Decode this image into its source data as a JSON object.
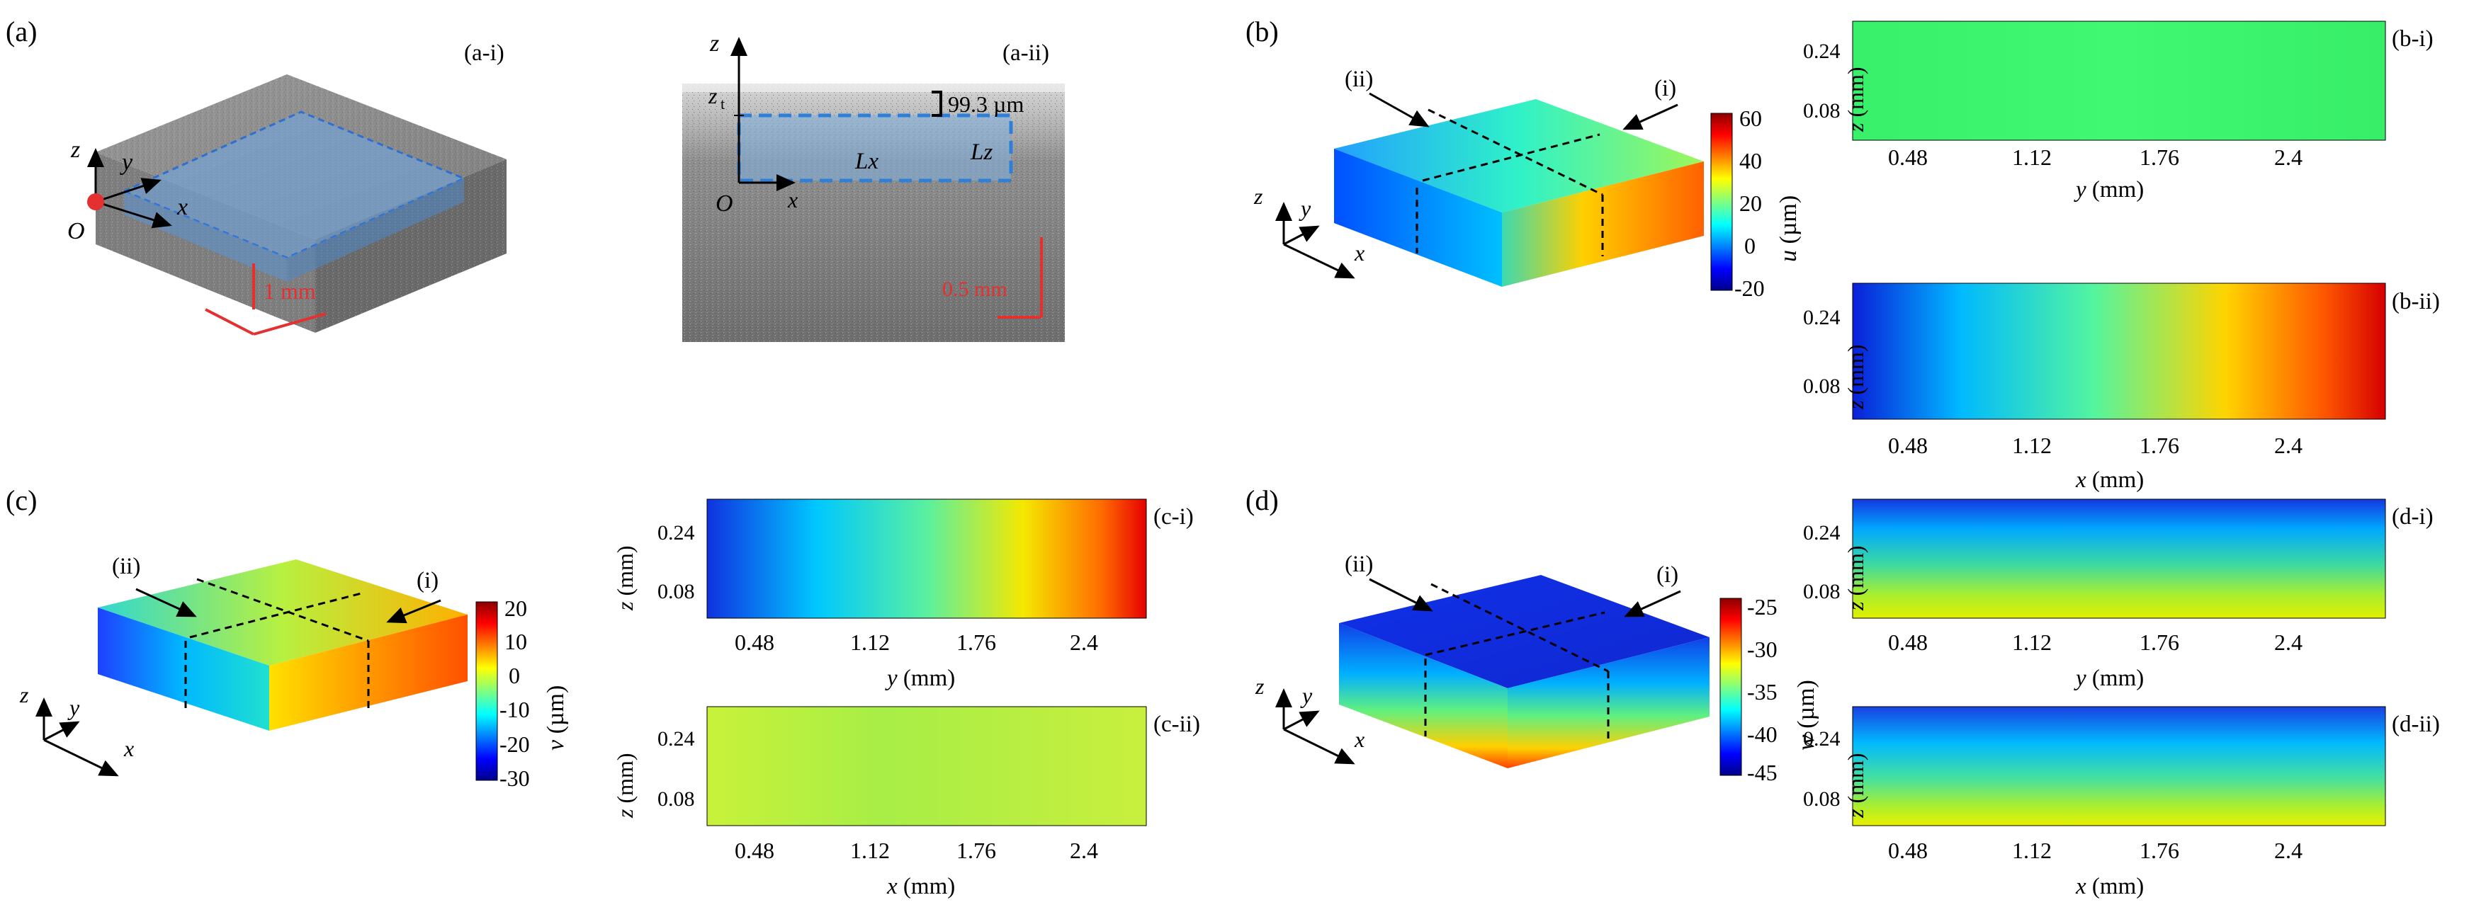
{
  "panel_labels": {
    "a": "(a)",
    "b": "(b)",
    "c": "(c)",
    "d": "(d)"
  },
  "sub_labels": {
    "a_i": "(a-i)",
    "a_ii": "(a-ii)",
    "b_i": "(b-i)",
    "b_ii": "(b-ii)",
    "c_i": "(c-i)",
    "c_ii": "(c-ii)",
    "d_i": "(d-i)",
    "d_ii": "(d-ii)"
  },
  "cut_labels": {
    "i": "(i)",
    "ii": "(ii)"
  },
  "axis_letters": {
    "x": "x",
    "y": "y",
    "z": "z",
    "origin": "O"
  },
  "panel_a": {
    "scale_3d": "1 mm",
    "scale_2d": "0.5 mm",
    "zt_symbol": "z",
    "zt_subscript": "t",
    "thickness": "99.3 µm",
    "lx": "Lx",
    "lz": "Lz"
  },
  "colorbars": {
    "u": {
      "label_var": "u",
      "label_unit": " (µm)",
      "ticks": [
        "60",
        "40",
        "20",
        "0",
        "-20"
      ]
    },
    "v": {
      "label_var": "v",
      "label_unit": " (µm)",
      "ticks": [
        "20",
        "10",
        "0",
        "-10",
        "-20",
        "-30"
      ]
    },
    "w": {
      "label_var": "w",
      "label_unit": " (µm)",
      "ticks": [
        "-25",
        "-30",
        "-35",
        "-40",
        "-45"
      ]
    }
  },
  "slice_axes": {
    "z_ticks": [
      "0.24",
      "0.08"
    ],
    "h_ticks": [
      "0.48",
      "1.12",
      "1.76",
      "2.4"
    ],
    "z_label_var": "z",
    "z_label_unit": " (mm)",
    "y_label_var": "y",
    "y_label_unit": " (mm)",
    "x_label_var": "x",
    "x_label_unit": " (mm)"
  },
  "colors": {
    "cmap_blue": "#00008f",
    "cmap_cyan": "#00d8ff",
    "cmap_green": "#5cff8a",
    "cmap_yellow": "#ffe500",
    "cmap_red": "#e00000",
    "octgray": "#8c8c8c",
    "roi_blue": "#2f7fd6",
    "marker_red": "#e53030"
  }
}
